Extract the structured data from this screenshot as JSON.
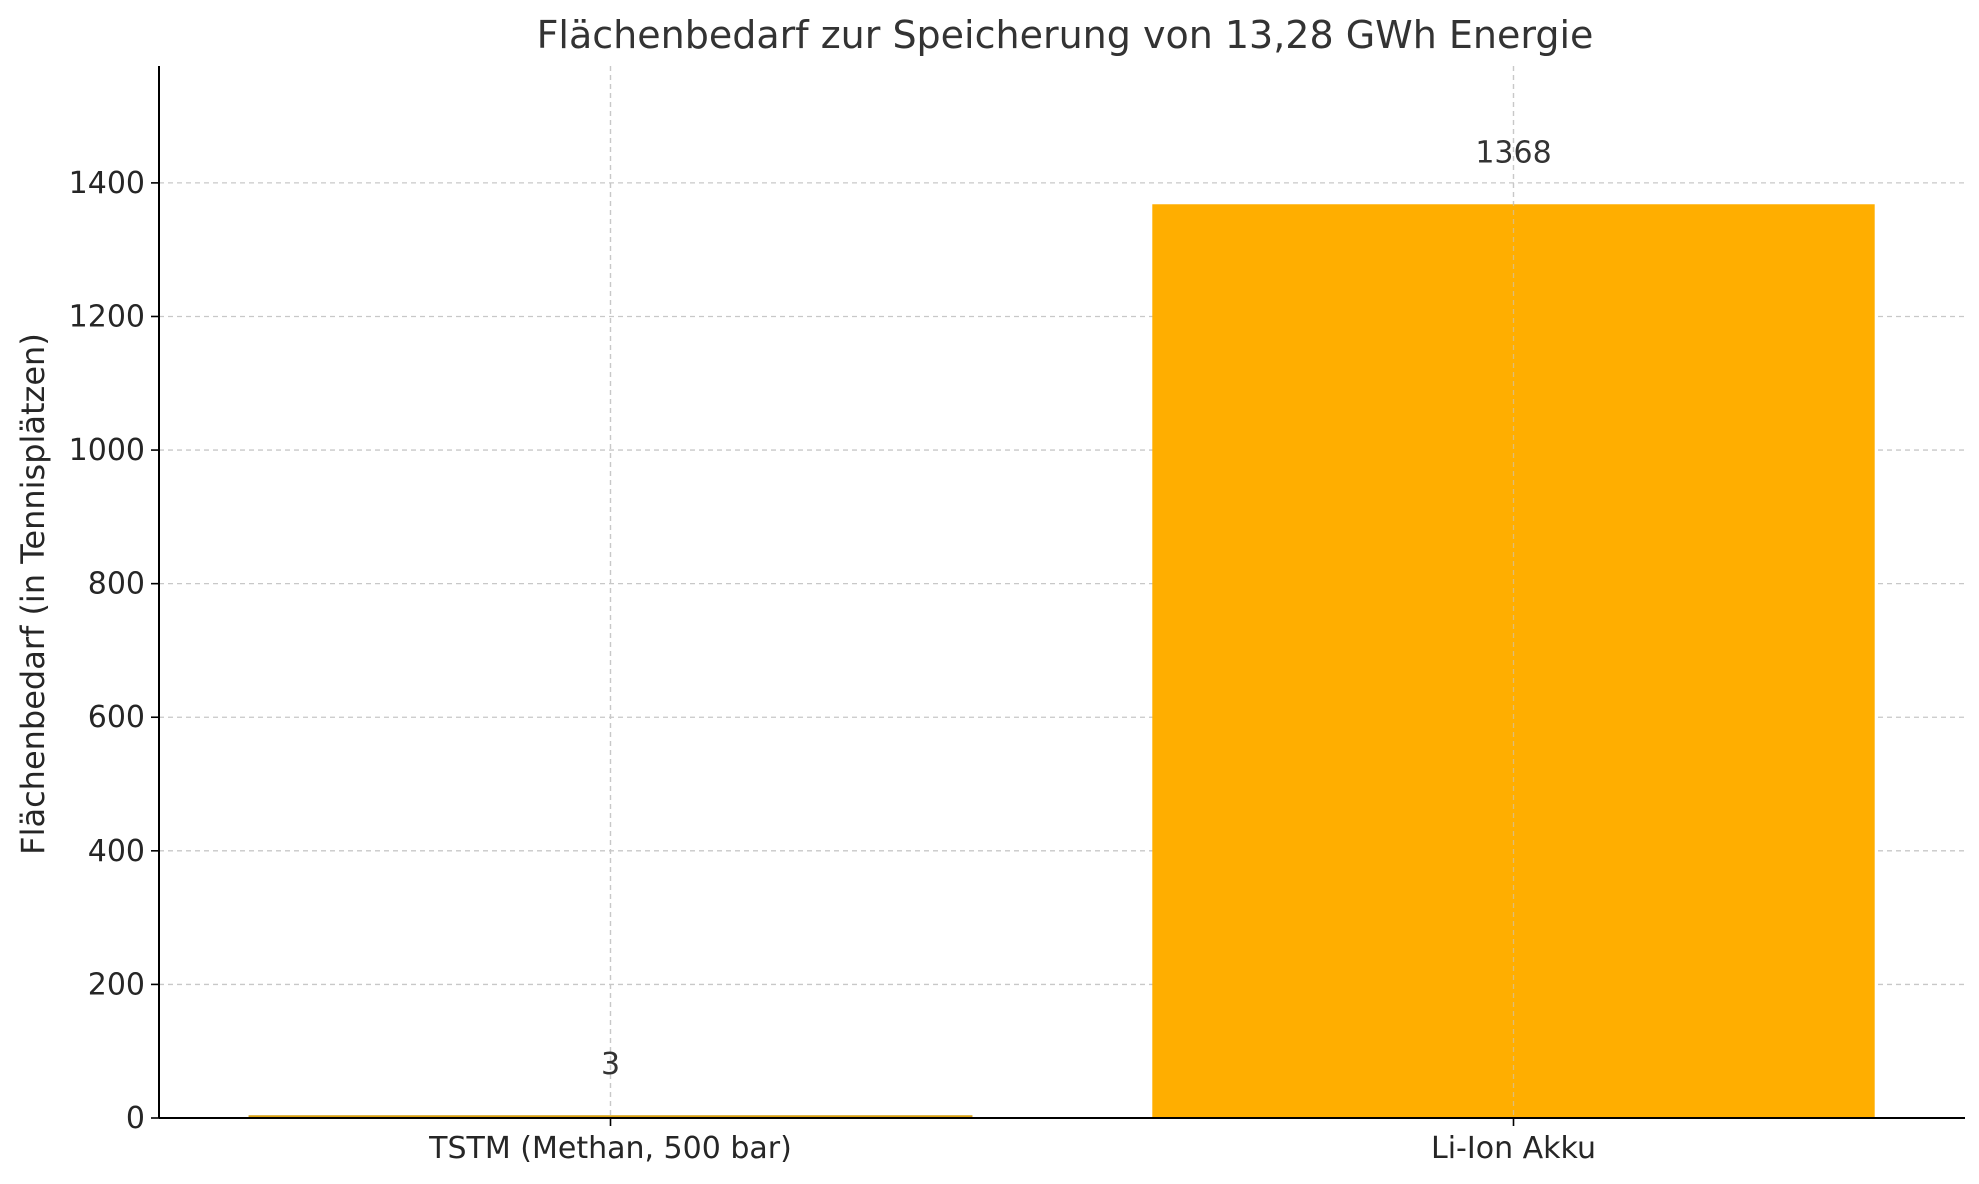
{
  "chart_data": {
    "type": "bar",
    "title": "Flächenbedarf zur Speicherung von 13,28 GWh Energie",
    "xlabel": "",
    "ylabel": "Flächenbedarf (in Tennisplätzen)",
    "categories": [
      "TSTM (Methan, 500 bar)",
      "Li-Ion Akku"
    ],
    "values": [
      3,
      1368
    ],
    "data_labels": [
      "3",
      "1368"
    ],
    "ylim": [
      0,
      1575
    ],
    "yticks": [
      0,
      200,
      400,
      600,
      800,
      1000,
      1200,
      1400
    ],
    "ytick_labels": [
      "0",
      "200",
      "400",
      "600",
      "800",
      "1000",
      "1200",
      "1400"
    ],
    "grid": true,
    "colors": {
      "bar_edge": "#d4a017",
      "bar_fill": "#ffae00",
      "grid": "#c8c8c8",
      "axis": "#000000"
    }
  }
}
